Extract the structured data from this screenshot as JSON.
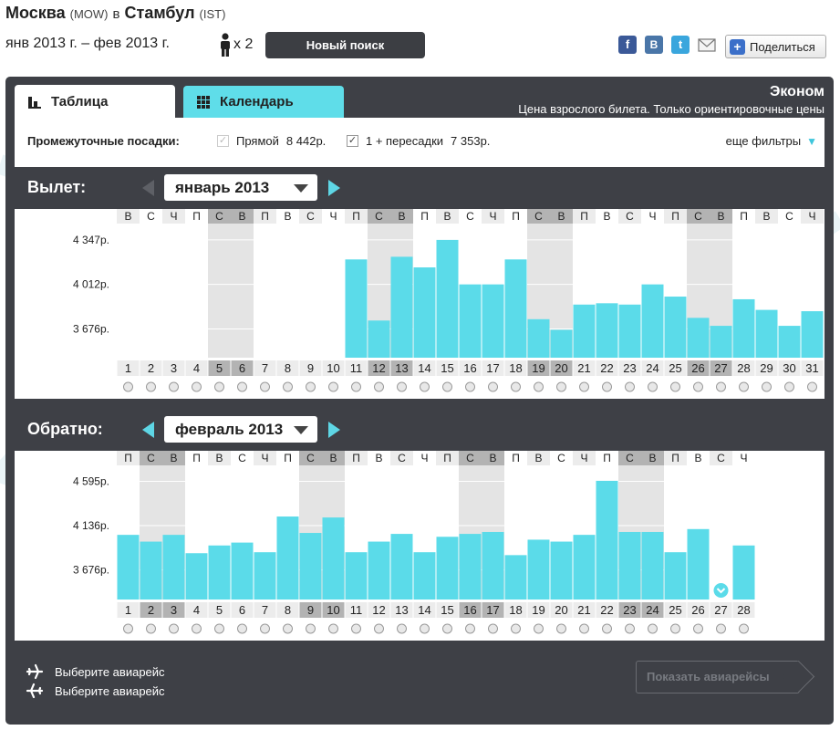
{
  "header": {
    "origin_city": "Москва",
    "origin_code": "(MOW)",
    "connector": "в",
    "dest_city": "Стамбул",
    "dest_code": "(IST)",
    "dates": "янв 2013 г. – фев 2013 г.",
    "passengers": "x 2",
    "new_search_label": "Новый поиск",
    "share_label": "Поделиться",
    "social_icons": [
      "facebook-icon",
      "vk-icon",
      "twitter-icon",
      "mail-icon"
    ]
  },
  "tabs": [
    {
      "label": "Таблица",
      "active": true
    },
    {
      "label": "Календарь",
      "active": false
    }
  ],
  "cabin": {
    "class_label": "Эконом",
    "note": "Цена взрослого билета. Только ориентировочные цены"
  },
  "filters": {
    "label": "Промежуточные посадки:",
    "direct_label": "Прямой",
    "direct_price": "8 442р.",
    "direct_checked": true,
    "direct_disabled": true,
    "transfer_label": "1 + пересадки",
    "transfer_price": "7 353р.",
    "transfer_checked": true,
    "more_label": "еще фильтры"
  },
  "colors": {
    "bar": "#5bdbe9",
    "weekend": "#e4e4e4",
    "weekend_header": "#b3b3b3",
    "panel": "#3e4046",
    "accent": "#5ed6e5"
  },
  "charts": {
    "departure": {
      "title": "Вылет:",
      "month": "январь 2013",
      "prev_enabled": false,
      "y_ticks": [
        "4 347р.",
        "4 012р.",
        "3 676р."
      ],
      "y_tick_values": [
        4347,
        4012,
        3676
      ],
      "weekday_letters": [
        "В",
        "С",
        "Ч",
        "П",
        "С",
        "В",
        "П",
        "В",
        "С",
        "Ч",
        "П",
        "С",
        "В",
        "П",
        "В",
        "С",
        "Ч",
        "П",
        "С",
        "В",
        "П",
        "В",
        "С",
        "Ч",
        "П",
        "С",
        "В",
        "П",
        "В",
        "С",
        "Ч"
      ],
      "weekend_days": [
        5,
        6,
        12,
        13,
        19,
        20,
        26,
        27
      ]
    },
    "return": {
      "title": "Обратно:",
      "month": "февраль 2013",
      "prev_enabled": true,
      "y_ticks": [
        "4 595р.",
        "4 136р.",
        "3 676р."
      ],
      "y_tick_values": [
        4595,
        4136,
        3676
      ],
      "weekday_letters": [
        "П",
        "С",
        "В",
        "П",
        "В",
        "С",
        "Ч",
        "П",
        "С",
        "В",
        "П",
        "В",
        "С",
        "Ч",
        "П",
        "С",
        "В",
        "П",
        "В",
        "С",
        "Ч",
        "П",
        "С",
        "В",
        "П",
        "В",
        "С",
        "Ч"
      ],
      "weekend_days": [
        2,
        3,
        9,
        10,
        16,
        17,
        23,
        24
      ],
      "no_data_day": 27
    }
  },
  "chart_data": [
    {
      "type": "bar",
      "title": "Вылет:",
      "ylabel": "",
      "ylim": [
        3460,
        4470
      ],
      "categories": [
        "1",
        "2",
        "3",
        "4",
        "5",
        "6",
        "7",
        "8",
        "9",
        "10",
        "11",
        "12",
        "13",
        "14",
        "15",
        "16",
        "17",
        "18",
        "19",
        "20",
        "21",
        "22",
        "23",
        "24",
        "25",
        "26",
        "27",
        "28",
        "29",
        "30",
        "31"
      ],
      "values": [
        null,
        null,
        null,
        null,
        null,
        null,
        null,
        null,
        null,
        null,
        4200,
        3740,
        4220,
        4140,
        4347,
        4012,
        4012,
        4200,
        3750,
        3670,
        3860,
        3870,
        3860,
        4012,
        3920,
        3760,
        3700,
        3900,
        3820,
        3700,
        3810
      ]
    },
    {
      "type": "bar",
      "title": "Обратно:",
      "ylabel": "",
      "ylim": [
        3370,
        4760
      ],
      "categories": [
        "1",
        "2",
        "3",
        "4",
        "5",
        "6",
        "7",
        "8",
        "9",
        "10",
        "11",
        "12",
        "13",
        "14",
        "15",
        "16",
        "17",
        "18",
        "19",
        "20",
        "21",
        "22",
        "23",
        "24",
        "25",
        "26",
        "27",
        "28"
      ],
      "values": [
        4040,
        3970,
        4040,
        3850,
        3930,
        3960,
        3860,
        4230,
        4060,
        4220,
        3860,
        3970,
        4050,
        3860,
        4020,
        4050,
        4070,
        3830,
        3990,
        3970,
        4040,
        4600,
        4070,
        4070,
        3860,
        4100,
        null,
        3930
      ]
    }
  ],
  "footer": {
    "outbound_label": "Выберите авиарейс",
    "return_label": "Выберите авиарейс",
    "show_flights_label": "Показать авиарейсы"
  }
}
